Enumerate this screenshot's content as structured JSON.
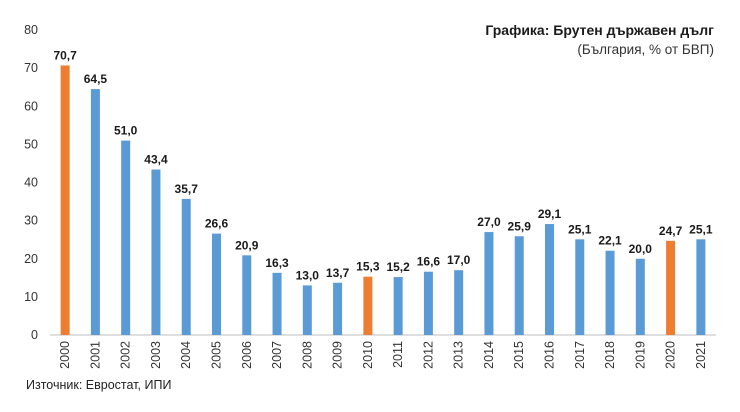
{
  "chart_data": {
    "type": "bar",
    "title": "Графика: Брутен държавен дълг",
    "subtitle": "(България, % от БВП)",
    "source": "Източник: Евростат, ИПИ",
    "categories": [
      "2000",
      "2001",
      "2002",
      "2003",
      "2004",
      "2005",
      "2006",
      "2007",
      "2008",
      "2009",
      "2010",
      "2011",
      "2012",
      "2013",
      "2014",
      "2015",
      "2016",
      "2017",
      "2018",
      "2019",
      "2020",
      "2021"
    ],
    "values": [
      70.7,
      64.5,
      51.0,
      43.4,
      35.7,
      26.6,
      20.9,
      16.3,
      13.0,
      13.7,
      15.3,
      15.2,
      16.6,
      17.0,
      27.0,
      25.9,
      29.1,
      25.1,
      22.1,
      20.0,
      24.7,
      25.1
    ],
    "data_labels": [
      "70,7",
      "64,5",
      "51,0",
      "43,4",
      "35,7",
      "26,6",
      "20,9",
      "16,3",
      "13,0",
      "13,7",
      "15,3",
      "15,2",
      "16,6",
      "17,0",
      "27,0",
      "25,9",
      "29,1",
      "25,1",
      "22,1",
      "20,0",
      "24,7",
      "25,1"
    ],
    "highlighted": [
      "2000",
      "2010",
      "2020"
    ],
    "ylim": [
      0,
      80
    ],
    "yticks": [
      0,
      10,
      20,
      30,
      40,
      50,
      60,
      70,
      80
    ],
    "grid": false,
    "legend": "none",
    "colors": {
      "bar": "#5b9bd5",
      "highlight": "#ed7d31",
      "axis": "#bfbfbf",
      "text": "#1a1a1a"
    }
  }
}
